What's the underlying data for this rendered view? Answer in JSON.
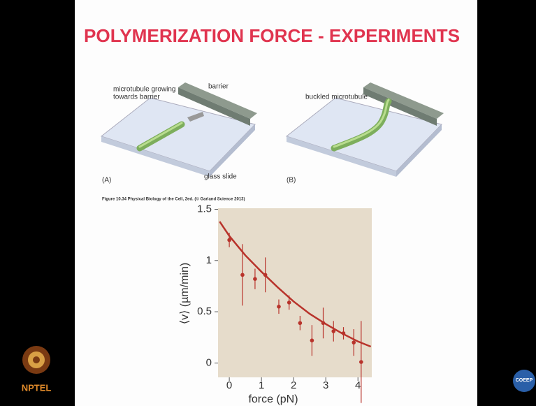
{
  "slide": {
    "title": "POLYMERIZATION FORCE - EXPERIMENTS",
    "figure": {
      "panel_a": {
        "label": "(A)",
        "microtubule_label": [
          "microtubule growing",
          "towards barrier"
        ],
        "barrier_label": "barrier",
        "slide_label": "glass slide"
      },
      "panel_b": {
        "label": "(B)",
        "microtubule_label": "buckled microtubule"
      },
      "caption": "Figure 10.34 Physical Biology of the Cell, 2ed. (© Garland Science 2013)"
    },
    "logos": {
      "left": "NPTEL",
      "right": "COEEP"
    }
  },
  "chart_data": {
    "type": "scatter",
    "xlabel": "force (pN)",
    "ylabel": "⟨v⟩ (µm/min)",
    "xlim": [
      -0.35,
      4.43
    ],
    "ylim": [
      -0.14,
      1.51
    ],
    "xticks": [
      0,
      1,
      2,
      3,
      4
    ],
    "yticks": [
      0,
      0.5,
      1,
      1.5
    ],
    "background": "#e6dccb",
    "series": [
      {
        "color": "#b8332b",
        "x": [
          0,
          0.41,
          0.8,
          1.12,
          1.54,
          1.86,
          2.2,
          2.57,
          2.92,
          3.24,
          3.55,
          3.87,
          4.1
        ],
        "values": [
          1.2,
          0.86,
          0.82,
          0.86,
          0.55,
          0.59,
          0.39,
          0.22,
          0.39,
          0.31,
          0.29,
          0.2,
          0.01
        ],
        "errors": [
          0.07,
          0.3,
          0.1,
          0.17,
          0.07,
          0.07,
          0.07,
          0.15,
          0.15,
          0.1,
          0.06,
          0.13,
          0.4
        ]
      },
      {
        "color": "#b8332b",
        "x": [
          -0.3,
          0,
          0.5,
          1,
          1.5,
          2,
          2.5,
          3,
          3.5,
          4,
          4.4
        ],
        "values": [
          1.38,
          1.24,
          1.05,
          0.89,
          0.74,
          0.6,
          0.48,
          0.38,
          0.29,
          0.21,
          0.16
        ]
      }
    ]
  }
}
